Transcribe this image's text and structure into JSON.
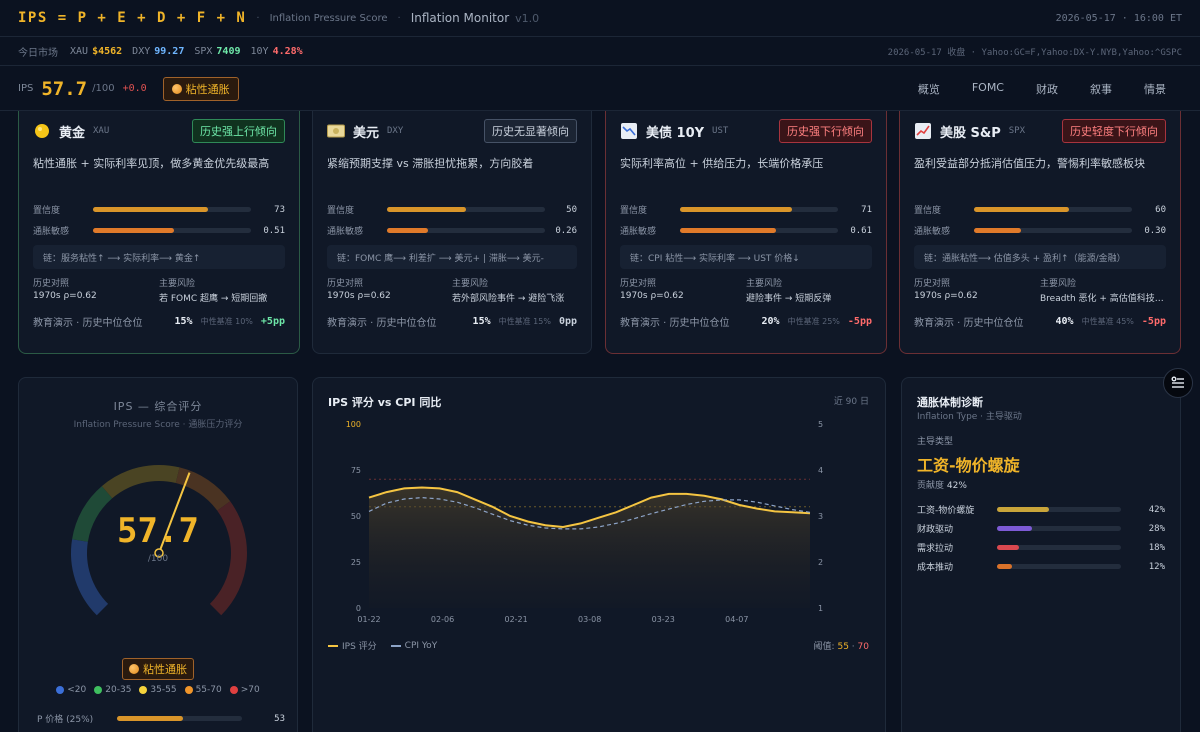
{
  "header": {
    "logo": "IPS = P + E + D + F + N",
    "subtitle": "Inflation Pressure Score",
    "title": "Inflation Monitor",
    "version": "v1.0",
    "datetime": "2026-05-17 · 16:00 ET"
  },
  "market": {
    "label": "今日市场",
    "tickers": [
      {
        "symbol": "XAU",
        "value": "$4562",
        "color": "#f0b429"
      },
      {
        "symbol": "DXY",
        "value": "99.27",
        "color": "#6fb6ff"
      },
      {
        "symbol": "SPX",
        "value": "7409",
        "color": "#6ee7a8"
      },
      {
        "symbol": "10Y",
        "value": "4.28%",
        "color": "#ff6b6b"
      }
    ],
    "source": "2026-05-17 收盘 · Yahoo:GC=F,Yahoo:DX-Y.NYB,Yahoo:^GSPC"
  },
  "score_bar": {
    "label": "IPS",
    "value": "57.7",
    "max": "/100",
    "delta": "+0.0",
    "regime": "粘性通胀"
  },
  "nav": [
    "概览",
    "FOMC",
    "财政",
    "叙事",
    "情景"
  ],
  "cards": [
    {
      "name": "黄金",
      "code": "XAU",
      "icon": "gold-coin-icon",
      "tag": "历史强上行倾向",
      "tag_type": "up",
      "desc": "粘性通胀 + 实际利率见顶，做多黄金优先级最高",
      "confidence_label": "置信度",
      "confidence": "73",
      "confidence_pct": 73,
      "sensitivity_label": "通胀敏感",
      "sensitivity": "0.51",
      "sensitivity_pct": 51,
      "chain": "链：服务粘性↑ ⟶ 实际利率⟶ 黄金↑",
      "hist_label": "历史对照",
      "hist_value": "1970s ρ=0.62",
      "risk_label": "主要风险",
      "risk_value": "若 FOMC 超鹰 → 短期回撤",
      "foot_label": "教育演示 · 历史中位仓位",
      "pct": "15%",
      "base": "中性基准 10%",
      "delta": "+5pp",
      "delta_color": "#6ee7a8"
    },
    {
      "name": "美元",
      "code": "DXY",
      "icon": "dollar-bill-icon",
      "tag": "历史无显著倾向",
      "tag_type": "flat",
      "desc": "紧缩预期支撑 vs 滞胀担忧拖累，方向胶着",
      "confidence_label": "置信度",
      "confidence": "50",
      "confidence_pct": 50,
      "sensitivity_label": "通胀敏感",
      "sensitivity": "0.26",
      "sensitivity_pct": 26,
      "chain": "链：FOMC 鹰⟶ 利差扩 ⟶ 美元+ | 滞胀⟶ 美元-",
      "hist_label": "历史对照",
      "hist_value": "1970s ρ=0.62",
      "risk_label": "主要风险",
      "risk_value": "若外部风险事件 → 避险飞涨",
      "foot_label": "教育演示 · 历史中位仓位",
      "pct": "15%",
      "base": "中性基准 15%",
      "delta": "0pp",
      "delta_color": "#c9d1dc"
    },
    {
      "name": "美债 10Y",
      "code": "UST",
      "icon": "chart-down-icon",
      "tag": "历史强下行倾向",
      "tag_type": "down",
      "desc": "实际利率高位 + 供给压力，长端价格承压",
      "confidence_label": "置信度",
      "confidence": "71",
      "confidence_pct": 71,
      "sensitivity_label": "通胀敏感",
      "sensitivity": "0.61",
      "sensitivity_pct": 61,
      "chain": "链：CPI 粘性⟶ 实际利率 ⟶ UST 价格↓",
      "hist_label": "历史对照",
      "hist_value": "1970s ρ=0.62",
      "risk_label": "主要风险",
      "risk_value": "避险事件 → 短期反弹",
      "foot_label": "教育演示 · 历史中位仓位",
      "pct": "20%",
      "base": "中性基准 25%",
      "delta": "-5pp",
      "delta_color": "#ff6b6b"
    },
    {
      "name": "美股 S&P",
      "code": "SPX",
      "icon": "chart-up-icon",
      "tag": "历史轻度下行倾向",
      "tag_type": "down",
      "desc": "盈利受益部分抵消估值压力，警惕利率敏感板块",
      "confidence_label": "置信度",
      "confidence": "60",
      "confidence_pct": 60,
      "sensitivity_label": "通胀敏感",
      "sensitivity": "0.30",
      "sensitivity_pct": 30,
      "chain": "链：通胀粘性⟶ 估值多头 + 盈利↑（能源/金融）",
      "hist_label": "历史对照",
      "hist_value": "1970s ρ=0.62",
      "risk_label": "主要风险",
      "risk_value": "Breadth 恶化 + 高估值科技…",
      "foot_label": "教育演示 · 历史中位仓位",
      "pct": "40%",
      "base": "中性基准 45%",
      "delta": "-5pp",
      "delta_color": "#ff6b6b"
    }
  ],
  "gauge": {
    "title": "IPS — 综合评分",
    "subtitle": "Inflation Pressure Score · 通胀压力评分",
    "value": "57.7",
    "value_num": 57.7,
    "max": "/100",
    "regime": "粘性通胀",
    "legend": [
      {
        "label": "<20",
        "color": "#3b6fd8"
      },
      {
        "label": "20-35",
        "color": "#3fbf5f"
      },
      {
        "label": "35-55",
        "color": "#f5d33c"
      },
      {
        "label": "55-70",
        "color": "#f0952a"
      },
      {
        "label": ">70",
        "color": "#e04040"
      }
    ],
    "p_label": "P 价格 (25%)",
    "p_value": "53",
    "p_pct": 53
  },
  "chart_data": {
    "type": "line",
    "title": "IPS 评分 vs CPI 同比",
    "range_label": "近 90 日",
    "x_ticks": [
      "01-22",
      "02-06",
      "02-21",
      "03-08",
      "03-23",
      "04-07"
    ],
    "y_left_ticks": [
      "100",
      "75",
      "50",
      "25",
      "0"
    ],
    "y_right_ticks": [
      "5",
      "4",
      "3",
      "2",
      "1"
    ],
    "ylim_left": [
      0,
      100
    ],
    "ylim_right": [
      1,
      5
    ],
    "series": [
      {
        "name": "IPS 评分",
        "axis": "left",
        "color": "#f5c542",
        "values": [
          60,
          63,
          65,
          65.5,
          65,
          63,
          59,
          55,
          50,
          47,
          45,
          44,
          46,
          49,
          52,
          56,
          60,
          62,
          62,
          61,
          59,
          56,
          54,
          52.5,
          52,
          51.5
        ]
      },
      {
        "name": "CPI YoY",
        "axis": "right",
        "color": "#8da4c8",
        "values": [
          3.1,
          3.28,
          3.37,
          3.4,
          3.37,
          3.3,
          3.18,
          3.04,
          2.9,
          2.8,
          2.74,
          2.72,
          2.72,
          2.76,
          2.84,
          2.94,
          3.05,
          3.15,
          3.25,
          3.32,
          3.35,
          3.35,
          3.3,
          3.22,
          3.14,
          3.08
        ]
      }
    ],
    "thresholds": [
      55,
      70
    ],
    "threshold_label": "阈值:",
    "threshold_values": [
      "55",
      "70"
    ]
  },
  "diagnosis": {
    "title": "通胀体制诊断",
    "subtitle": "Inflation Type · 主导驱动",
    "lead_label": "主导类型",
    "lead_type": "工资-物价螺旋",
    "contrib_label": "贡献度",
    "contrib_value": "42%",
    "rows": [
      {
        "label": "工资-物价螺旋",
        "value": "42%",
        "pct": 42,
        "color": "#c9a53a"
      },
      {
        "label": "财政驱动",
        "value": "28%",
        "pct": 28,
        "color": "#7d5bd6"
      },
      {
        "label": "需求拉动",
        "value": "18%",
        "pct": 18,
        "color": "#d9484f"
      },
      {
        "label": "成本推动",
        "value": "12%",
        "pct": 12,
        "color": "#d9722a"
      }
    ]
  }
}
